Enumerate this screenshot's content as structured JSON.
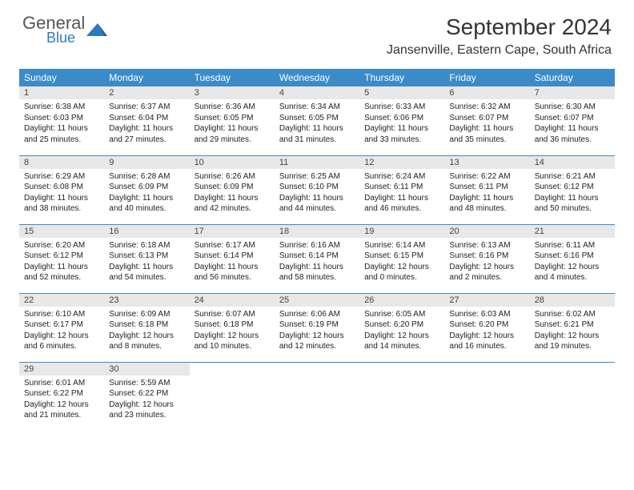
{
  "logo": {
    "text1": "General",
    "text2": "Blue",
    "shape_color": "#2b7bbf"
  },
  "title": "September 2024",
  "subtitle": "Jansenville, Eastern Cape, South Africa",
  "colors": {
    "header_bg": "#3b8bc9",
    "header_text": "#ffffff",
    "daynum_bg": "#e8e8e8",
    "rule": "#3b8bc9",
    "body_text": "#222222"
  },
  "weekdays": [
    "Sunday",
    "Monday",
    "Tuesday",
    "Wednesday",
    "Thursday",
    "Friday",
    "Saturday"
  ],
  "weeks": [
    [
      {
        "n": "1",
        "sr": "Sunrise: 6:38 AM",
        "ss": "Sunset: 6:03 PM",
        "d1": "Daylight: 11 hours",
        "d2": "and 25 minutes."
      },
      {
        "n": "2",
        "sr": "Sunrise: 6:37 AM",
        "ss": "Sunset: 6:04 PM",
        "d1": "Daylight: 11 hours",
        "d2": "and 27 minutes."
      },
      {
        "n": "3",
        "sr": "Sunrise: 6:36 AM",
        "ss": "Sunset: 6:05 PM",
        "d1": "Daylight: 11 hours",
        "d2": "and 29 minutes."
      },
      {
        "n": "4",
        "sr": "Sunrise: 6:34 AM",
        "ss": "Sunset: 6:05 PM",
        "d1": "Daylight: 11 hours",
        "d2": "and 31 minutes."
      },
      {
        "n": "5",
        "sr": "Sunrise: 6:33 AM",
        "ss": "Sunset: 6:06 PM",
        "d1": "Daylight: 11 hours",
        "d2": "and 33 minutes."
      },
      {
        "n": "6",
        "sr": "Sunrise: 6:32 AM",
        "ss": "Sunset: 6:07 PM",
        "d1": "Daylight: 11 hours",
        "d2": "and 35 minutes."
      },
      {
        "n": "7",
        "sr": "Sunrise: 6:30 AM",
        "ss": "Sunset: 6:07 PM",
        "d1": "Daylight: 11 hours",
        "d2": "and 36 minutes."
      }
    ],
    [
      {
        "n": "8",
        "sr": "Sunrise: 6:29 AM",
        "ss": "Sunset: 6:08 PM",
        "d1": "Daylight: 11 hours",
        "d2": "and 38 minutes."
      },
      {
        "n": "9",
        "sr": "Sunrise: 6:28 AM",
        "ss": "Sunset: 6:09 PM",
        "d1": "Daylight: 11 hours",
        "d2": "and 40 minutes."
      },
      {
        "n": "10",
        "sr": "Sunrise: 6:26 AM",
        "ss": "Sunset: 6:09 PM",
        "d1": "Daylight: 11 hours",
        "d2": "and 42 minutes."
      },
      {
        "n": "11",
        "sr": "Sunrise: 6:25 AM",
        "ss": "Sunset: 6:10 PM",
        "d1": "Daylight: 11 hours",
        "d2": "and 44 minutes."
      },
      {
        "n": "12",
        "sr": "Sunrise: 6:24 AM",
        "ss": "Sunset: 6:11 PM",
        "d1": "Daylight: 11 hours",
        "d2": "and 46 minutes."
      },
      {
        "n": "13",
        "sr": "Sunrise: 6:22 AM",
        "ss": "Sunset: 6:11 PM",
        "d1": "Daylight: 11 hours",
        "d2": "and 48 minutes."
      },
      {
        "n": "14",
        "sr": "Sunrise: 6:21 AM",
        "ss": "Sunset: 6:12 PM",
        "d1": "Daylight: 11 hours",
        "d2": "and 50 minutes."
      }
    ],
    [
      {
        "n": "15",
        "sr": "Sunrise: 6:20 AM",
        "ss": "Sunset: 6:12 PM",
        "d1": "Daylight: 11 hours",
        "d2": "and 52 minutes."
      },
      {
        "n": "16",
        "sr": "Sunrise: 6:18 AM",
        "ss": "Sunset: 6:13 PM",
        "d1": "Daylight: 11 hours",
        "d2": "and 54 minutes."
      },
      {
        "n": "17",
        "sr": "Sunrise: 6:17 AM",
        "ss": "Sunset: 6:14 PM",
        "d1": "Daylight: 11 hours",
        "d2": "and 56 minutes."
      },
      {
        "n": "18",
        "sr": "Sunrise: 6:16 AM",
        "ss": "Sunset: 6:14 PM",
        "d1": "Daylight: 11 hours",
        "d2": "and 58 minutes."
      },
      {
        "n": "19",
        "sr": "Sunrise: 6:14 AM",
        "ss": "Sunset: 6:15 PM",
        "d1": "Daylight: 12 hours",
        "d2": "and 0 minutes."
      },
      {
        "n": "20",
        "sr": "Sunrise: 6:13 AM",
        "ss": "Sunset: 6:16 PM",
        "d1": "Daylight: 12 hours",
        "d2": "and 2 minutes."
      },
      {
        "n": "21",
        "sr": "Sunrise: 6:11 AM",
        "ss": "Sunset: 6:16 PM",
        "d1": "Daylight: 12 hours",
        "d2": "and 4 minutes."
      }
    ],
    [
      {
        "n": "22",
        "sr": "Sunrise: 6:10 AM",
        "ss": "Sunset: 6:17 PM",
        "d1": "Daylight: 12 hours",
        "d2": "and 6 minutes."
      },
      {
        "n": "23",
        "sr": "Sunrise: 6:09 AM",
        "ss": "Sunset: 6:18 PM",
        "d1": "Daylight: 12 hours",
        "d2": "and 8 minutes."
      },
      {
        "n": "24",
        "sr": "Sunrise: 6:07 AM",
        "ss": "Sunset: 6:18 PM",
        "d1": "Daylight: 12 hours",
        "d2": "and 10 minutes."
      },
      {
        "n": "25",
        "sr": "Sunrise: 6:06 AM",
        "ss": "Sunset: 6:19 PM",
        "d1": "Daylight: 12 hours",
        "d2": "and 12 minutes."
      },
      {
        "n": "26",
        "sr": "Sunrise: 6:05 AM",
        "ss": "Sunset: 6:20 PM",
        "d1": "Daylight: 12 hours",
        "d2": "and 14 minutes."
      },
      {
        "n": "27",
        "sr": "Sunrise: 6:03 AM",
        "ss": "Sunset: 6:20 PM",
        "d1": "Daylight: 12 hours",
        "d2": "and 16 minutes."
      },
      {
        "n": "28",
        "sr": "Sunrise: 6:02 AM",
        "ss": "Sunset: 6:21 PM",
        "d1": "Daylight: 12 hours",
        "d2": "and 19 minutes."
      }
    ],
    [
      {
        "n": "29",
        "sr": "Sunrise: 6:01 AM",
        "ss": "Sunset: 6:22 PM",
        "d1": "Daylight: 12 hours",
        "d2": "and 21 minutes."
      },
      {
        "n": "30",
        "sr": "Sunrise: 5:59 AM",
        "ss": "Sunset: 6:22 PM",
        "d1": "Daylight: 12 hours",
        "d2": "and 23 minutes."
      },
      null,
      null,
      null,
      null,
      null
    ]
  ]
}
